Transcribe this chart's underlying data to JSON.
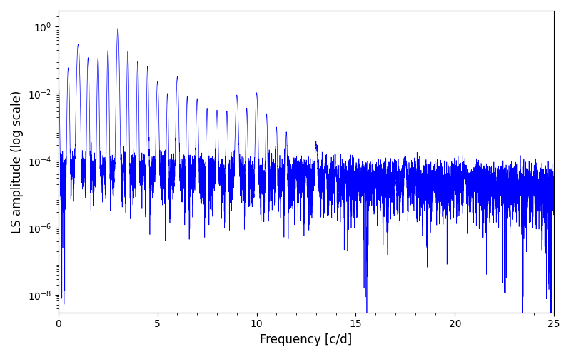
{
  "title": "",
  "xlabel": "Frequency [c/d]",
  "ylabel": "LS amplitude (log scale)",
  "xlim": [
    0,
    25
  ],
  "ylim": [
    3e-09,
    3
  ],
  "line_color": "#0000ff",
  "line_width": 0.5,
  "background_color": "#ffffff",
  "figsize": [
    8.0,
    5.0
  ],
  "dpi": 100,
  "seed": 42,
  "n_points": 8000,
  "freq_max": 25.0,
  "yticks": [
    1e-08,
    1e-06,
    0.0001,
    0.01,
    1.0
  ]
}
